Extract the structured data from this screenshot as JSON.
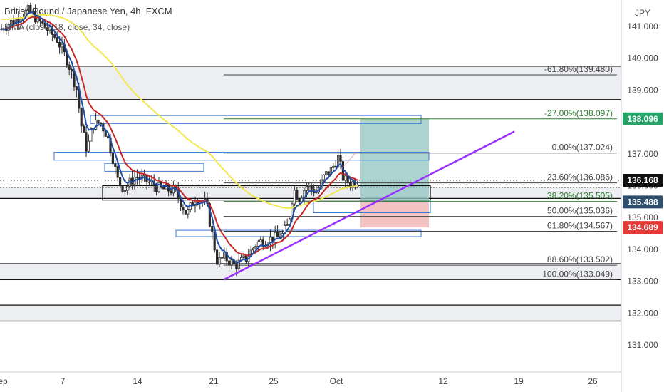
{
  "chart_data": {
    "type": "candlestick",
    "title": "British Pound / Japanese Yen, 4h, FXCM",
    "indicator_label": "MMA (close, 18, close, 34, close)",
    "currency": "JPY",
    "ylim": [
      130.0,
      141.5
    ],
    "y_ticks": [
      "141.000",
      "140.000",
      "139.000",
      "138.000",
      "137.000",
      "136.000",
      "135.000",
      "134.000",
      "133.000",
      "132.000",
      "131.000"
    ],
    "x_ticks": [
      "ep",
      "7",
      "14",
      "21",
      "25",
      "Oct",
      "12",
      "19",
      "26"
    ],
    "price_badges": [
      {
        "label": "138.096",
        "value": 138.096,
        "color": "#26a269"
      },
      {
        "label": "136.168",
        "value": 136.168,
        "color": "#111111"
      },
      {
        "label": "135.488",
        "value": 135.488,
        "color": "#2f4f6f"
      },
      {
        "label": "134.689",
        "value": 134.689,
        "color": "#e53935"
      }
    ],
    "fibonacci": [
      {
        "label": "-61.80%(139.480)",
        "value": 139.48
      },
      {
        "label": "-27.00%(138.097)",
        "value": 138.097
      },
      {
        "label": "0.00%(137.024)",
        "value": 137.024
      },
      {
        "label": "23.60%(136.086)",
        "value": 136.086
      },
      {
        "label": "38.20%(135.505)",
        "value": 135.505
      },
      {
        "label": "50.00%(135.036)",
        "value": 135.036
      },
      {
        "label": "61.80%(134.567)",
        "value": 134.567
      },
      {
        "label": "88.60%(133.502)",
        "value": 133.502
      },
      {
        "label": "100.00%(133.049)",
        "value": 133.049
      }
    ],
    "horizontal_levels": [
      139.75,
      138.7,
      135.95,
      135.6,
      133.55,
      133.05,
      132.25,
      131.75
    ],
    "colors": {
      "candle": "#2b2b2b",
      "ma_fast": "#1f4fa8",
      "ma_mid": "#c62828",
      "ma_slow": "#f2e94e",
      "trendline": "#9b30ff",
      "target_zone": "#8fc4c0",
      "stop_zone": "#f0b3b3",
      "zone_border": "#3a7bd5",
      "fib_positive": "#2e7d32"
    }
  }
}
